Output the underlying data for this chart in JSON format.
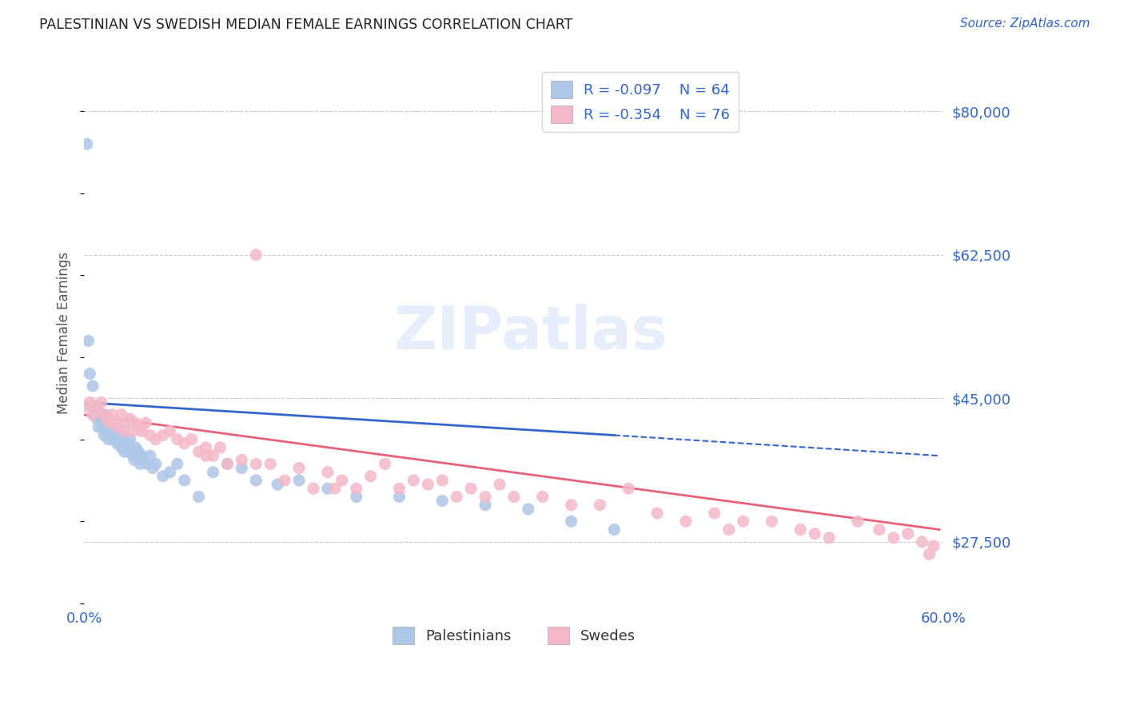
{
  "title": "PALESTINIAN VS SWEDISH MEDIAN FEMALE EARNINGS CORRELATION CHART",
  "source": "Source: ZipAtlas.com",
  "ylabel": "Median Female Earnings",
  "xlim": [
    0.0,
    0.6
  ],
  "ylim": [
    20000,
    86000
  ],
  "yticks": [
    27500,
    45000,
    62500,
    80000
  ],
  "ytick_labels": [
    "$27,500",
    "$45,000",
    "$62,500",
    "$80,000"
  ],
  "color_palestinian": "#aec6e8",
  "color_swedish": "#f4b8c8",
  "color_blue": "#3366cc",
  "color_pink": "#e8607a",
  "watermark": "ZIPatlas",
  "pal_r": "-0.097",
  "pal_n": "64",
  "swe_r": "-0.354",
  "swe_n": "76",
  "palestinian_x": [
    0.002,
    0.003,
    0.004,
    0.005,
    0.006,
    0.007,
    0.008,
    0.009,
    0.01,
    0.011,
    0.012,
    0.013,
    0.014,
    0.015,
    0.015,
    0.016,
    0.017,
    0.018,
    0.019,
    0.02,
    0.021,
    0.022,
    0.023,
    0.024,
    0.025,
    0.026,
    0.027,
    0.028,
    0.029,
    0.03,
    0.031,
    0.032,
    0.033,
    0.034,
    0.035,
    0.036,
    0.037,
    0.038,
    0.039,
    0.04,
    0.042,
    0.044,
    0.046,
    0.048,
    0.05,
    0.055,
    0.06,
    0.065,
    0.07,
    0.08,
    0.09,
    0.1,
    0.11,
    0.12,
    0.135,
    0.15,
    0.17,
    0.19,
    0.22,
    0.25,
    0.28,
    0.31,
    0.34,
    0.37
  ],
  "palestinian_y": [
    76000,
    52000,
    48000,
    44000,
    46500,
    43000,
    44000,
    42500,
    41500,
    42500,
    43000,
    41500,
    40500,
    41000,
    43000,
    41000,
    40000,
    41500,
    40500,
    41000,
    40000,
    41000,
    39500,
    40500,
    40000,
    39000,
    40500,
    38500,
    39000,
    39500,
    38500,
    40000,
    39000,
    38000,
    37500,
    39000,
    38000,
    38500,
    37000,
    38000,
    37500,
    37000,
    38000,
    36500,
    37000,
    35500,
    36000,
    37000,
    35000,
    33000,
    36000,
    37000,
    36500,
    35000,
    34500,
    35000,
    34000,
    33000,
    33000,
    32500,
    32000,
    31500,
    30000,
    29000
  ],
  "swedish_x": [
    0.002,
    0.004,
    0.006,
    0.008,
    0.01,
    0.012,
    0.014,
    0.016,
    0.018,
    0.02,
    0.022,
    0.024,
    0.026,
    0.028,
    0.03,
    0.032,
    0.034,
    0.036,
    0.038,
    0.04,
    0.043,
    0.046,
    0.05,
    0.055,
    0.06,
    0.065,
    0.07,
    0.075,
    0.08,
    0.085,
    0.09,
    0.095,
    0.1,
    0.11,
    0.12,
    0.13,
    0.14,
    0.15,
    0.16,
    0.17,
    0.18,
    0.19,
    0.2,
    0.21,
    0.22,
    0.23,
    0.24,
    0.25,
    0.26,
    0.27,
    0.28,
    0.29,
    0.3,
    0.32,
    0.34,
    0.36,
    0.38,
    0.4,
    0.42,
    0.44,
    0.46,
    0.48,
    0.5,
    0.52,
    0.54,
    0.555,
    0.565,
    0.575,
    0.585,
    0.59,
    0.593,
    0.12,
    0.45,
    0.51,
    0.175,
    0.085
  ],
  "swedish_y": [
    44000,
    44500,
    43000,
    44000,
    43500,
    44500,
    43000,
    42500,
    42000,
    43000,
    42000,
    41500,
    43000,
    41000,
    42000,
    42500,
    41000,
    42000,
    41500,
    41000,
    42000,
    40500,
    40000,
    40500,
    41000,
    40000,
    39500,
    40000,
    38500,
    39000,
    38000,
    39000,
    37000,
    37500,
    62500,
    37000,
    35000,
    36500,
    34000,
    36000,
    35000,
    34000,
    35500,
    37000,
    34000,
    35000,
    34500,
    35000,
    33000,
    34000,
    33000,
    34500,
    33000,
    33000,
    32000,
    32000,
    34000,
    31000,
    30000,
    31000,
    30000,
    30000,
    29000,
    28000,
    30000,
    29000,
    28000,
    28500,
    27500,
    26000,
    27000,
    37000,
    29000,
    28500,
    34000,
    38000
  ]
}
